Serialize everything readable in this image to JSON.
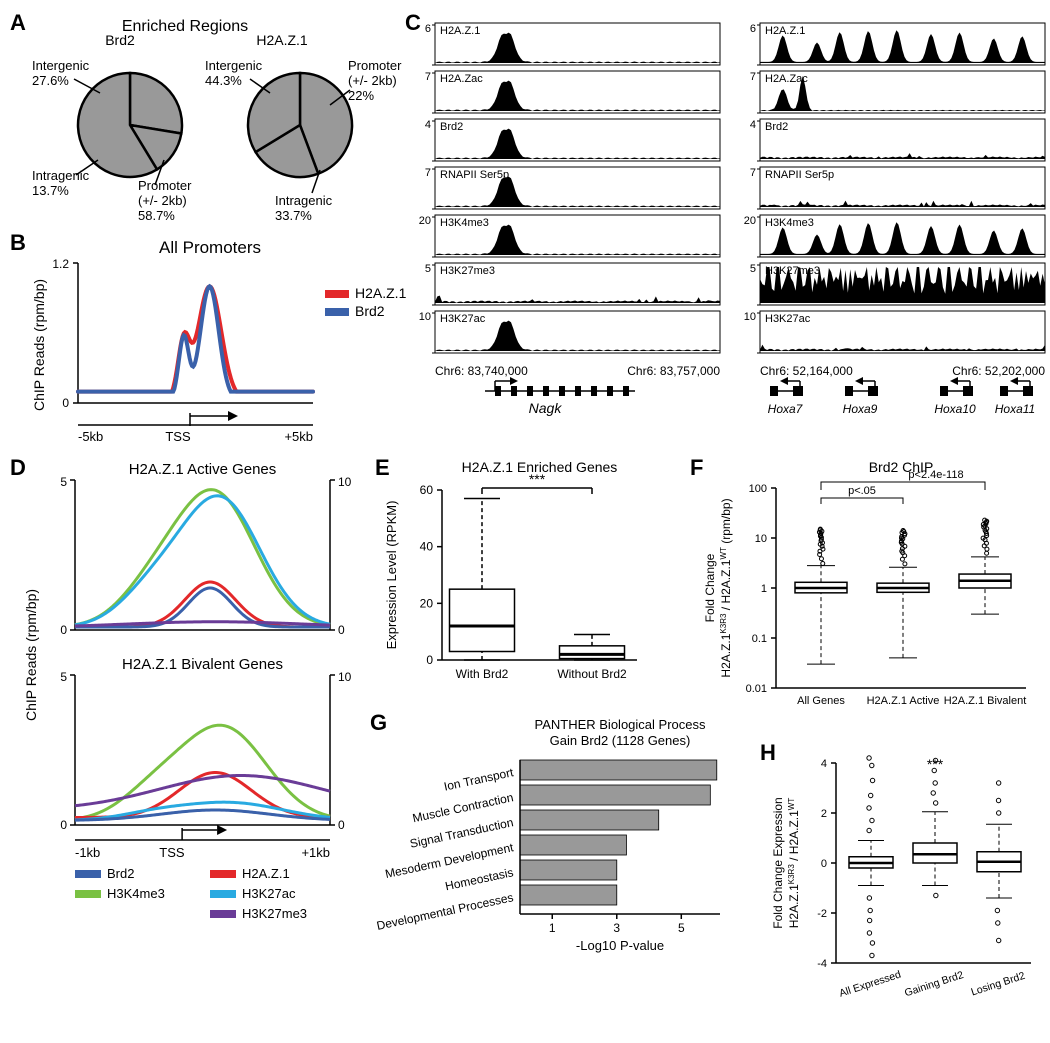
{
  "panelA": {
    "label": "A",
    "title": "Enriched Regions",
    "pie1": {
      "name": "Brd2",
      "slices": [
        {
          "label": "Intergenic",
          "value": 27.6,
          "text": "Intergenic\n27.6%"
        },
        {
          "label": "Intragenic",
          "value": 13.7,
          "text": "Intragenic\n13.7%"
        },
        {
          "label": "Promoter",
          "value": 58.7,
          "text": "Promoter\n(+/- 2kb)\n58.7%"
        }
      ],
      "fill": "#999999",
      "stroke": "#000000"
    },
    "pie2": {
      "name": "H2A.Z.1",
      "slices": [
        {
          "label": "Intergenic",
          "value": 44.3,
          "text": "Intergenic\n44.3%"
        },
        {
          "label": "Promoter",
          "value": 22.0,
          "text": "Promoter\n(+/- 2kb)\n22%"
        },
        {
          "label": "Intragenic",
          "value": 33.7,
          "text": "Intragenic\n33.7%"
        }
      ],
      "fill": "#999999",
      "stroke": "#000000"
    }
  },
  "panelB": {
    "label": "B",
    "title": "All Promoters",
    "ylabel": "ChIP Reads (rpm/bp)",
    "xlabel_left": "-5kb",
    "xlabel_mid": "TSS",
    "xlabel_right": "+5kb",
    "ylim": [
      0,
      1.2
    ],
    "yticks": [
      0,
      1.2
    ],
    "series": [
      {
        "name": "H2A.Z.1",
        "color": "#e3282a",
        "width": 4
      },
      {
        "name": "Brd2",
        "color": "#3a61aa",
        "width": 4
      }
    ]
  },
  "panelC": {
    "label": "C",
    "tracks_left": [
      {
        "name": "H2A.Z.1",
        "ymax": 6
      },
      {
        "name": "H2A.Zac",
        "ymax": 7
      },
      {
        "name": "Brd2",
        "ymax": 4
      },
      {
        "name": "RNAPII Ser5p",
        "ymax": 7
      },
      {
        "name": "H3K4me3",
        "ymax": 20
      },
      {
        "name": "H3K27me3",
        "ymax": 5
      },
      {
        "name": "H3K27ac",
        "ymax": 10
      }
    ],
    "tracks_right": [
      {
        "name": "H2A.Z.1",
        "ymax": 6
      },
      {
        "name": "H2A.Zac",
        "ymax": 7
      },
      {
        "name": "Brd2",
        "ymax": 4
      },
      {
        "name": "RNAPII Ser5p",
        "ymax": 7
      },
      {
        "name": "H3K4me3",
        "ymax": 20
      },
      {
        "name": "H3K27me3",
        "ymax": 5
      },
      {
        "name": "H3K27ac",
        "ymax": 10
      }
    ],
    "left_region": {
      "start": "Chr6: 83,740,000",
      "end": "Chr6: 83,757,000",
      "gene": "Nagk"
    },
    "right_region": {
      "start": "Chr6: 52,164,000",
      "end": "Chr6: 52,202,000",
      "genes": [
        "Hoxa7",
        "Hoxa9",
        "Hoxa10",
        "Hoxa11"
      ]
    },
    "track_fill": "#000000"
  },
  "panelD": {
    "label": "D",
    "title1": "H2A.Z.1 Active Genes",
    "title2": "H2A.Z.1 Bivalent Genes",
    "ylabel": "ChIP Reads (rpm/bp)",
    "xlabel_left": "-1kb",
    "xlabel_mid": "TSS",
    "xlabel_right": "+1kb",
    "ylim_left": [
      0,
      5
    ],
    "ylim_right": [
      0,
      10
    ],
    "yticks_left": [
      0,
      5
    ],
    "yticks_right": [
      0,
      10
    ],
    "legend": [
      {
        "name": "Brd2",
        "color": "#3a61aa"
      },
      {
        "name": "H2A.Z.1",
        "color": "#e3282a"
      },
      {
        "name": "H3K4me3",
        "color": "#7ac143"
      },
      {
        "name": "H3K27ac",
        "color": "#29aae1"
      },
      {
        "name": "H3K27me3",
        "color": "#6a3c97"
      }
    ]
  },
  "panelE": {
    "label": "E",
    "title": "H2A.Z.1 Enriched Genes",
    "ylabel": "Expression Level (RPKM)",
    "ylim": [
      0,
      60
    ],
    "yticks": [
      0,
      20,
      40,
      60
    ],
    "groups": [
      "With Brd2",
      "Without Brd2"
    ],
    "boxes": [
      {
        "q1": 3,
        "med": 12,
        "q3": 25,
        "wlo": 0,
        "whi": 57
      },
      {
        "q1": 0.5,
        "med": 2,
        "q3": 5,
        "wlo": 0,
        "whi": 9
      }
    ],
    "sig": "***"
  },
  "panelF": {
    "label": "F",
    "title": "Brd2 ChIP",
    "ylabel": "Fold Change\nH2A.Z.1^K3R3 / H2A.Z.1^WT (rpm/bp)",
    "ylim": [
      0.01,
      100
    ],
    "yticks": [
      0.01,
      0.1,
      1,
      10,
      100
    ],
    "groups": [
      "All Genes",
      "H2A.Z.1 Active",
      "H2A.Z.1 Bivalent"
    ],
    "pvals": [
      {
        "text": "p<.05"
      },
      {
        "text": "p<2.4e-118"
      }
    ],
    "boxes": [
      {
        "q1": 0.8,
        "med": 1.0,
        "q3": 1.3,
        "wlo": 0.03,
        "whi": 2.8
      },
      {
        "q1": 0.82,
        "med": 1.0,
        "q3": 1.25,
        "wlo": 0.04,
        "whi": 2.6
      },
      {
        "q1": 1.0,
        "med": 1.4,
        "q3": 1.9,
        "wlo": 0.3,
        "whi": 4.2
      }
    ]
  },
  "panelG": {
    "label": "G",
    "title": "PANTHER Biological Process",
    "subtitle": "Gain Brd2 (1128 Genes)",
    "xlabel": "-Log10 P-value",
    "xlim": [
      0,
      6
    ],
    "xticks": [
      1,
      3,
      5
    ],
    "categories": [
      {
        "name": "Ion Transport",
        "value": 6.1
      },
      {
        "name": "Muscle Contraction",
        "value": 5.9
      },
      {
        "name": "Signal Transduction",
        "value": 4.3
      },
      {
        "name": "Mesoderm Development",
        "value": 3.3
      },
      {
        "name": "Homeostasis",
        "value": 3.0
      },
      {
        "name": "Developmental Processes",
        "value": 3.0
      }
    ],
    "bar_color": "#999999"
  },
  "panelH": {
    "label": "H",
    "ylabel": "Fold Change Expression\nH2A.Z.1^K3R3 / H2A.Z.1^WT",
    "ylim": [
      -4,
      4
    ],
    "yticks": [
      -4,
      -2,
      0,
      2,
      4
    ],
    "groups": [
      "All Expressed",
      "Gaining Brd2",
      "Losing Brd2"
    ],
    "sig": "***",
    "boxes": [
      {
        "q1": -0.2,
        "med": 0.0,
        "q3": 0.25,
        "wlo": -0.9,
        "whi": 0.9
      },
      {
        "q1": 0.0,
        "med": 0.35,
        "q3": 0.8,
        "wlo": -0.9,
        "whi": 2.05
      },
      {
        "q1": -0.35,
        "med": 0.05,
        "q3": 0.45,
        "wlo": -1.4,
        "whi": 1.55
      }
    ]
  },
  "colors": {
    "red": "#e3282a",
    "blue": "#3a61aa",
    "green": "#7ac143",
    "lightblue": "#29aae1",
    "purple": "#6a3c97",
    "grey": "#999999",
    "black": "#000000"
  }
}
